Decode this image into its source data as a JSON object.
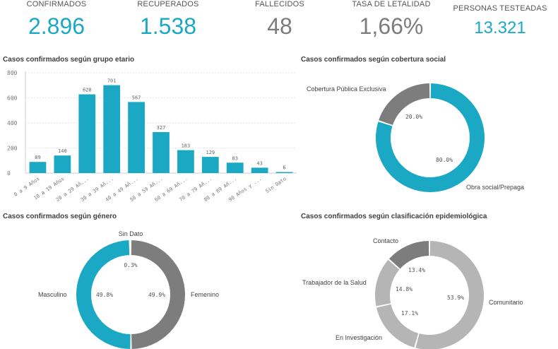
{
  "kpis": [
    {
      "label": "CONFIRMADOS",
      "value": "2.896"
    },
    {
      "label": "RECUPERADOS",
      "value": "1.538"
    },
    {
      "label": "FALLECIDOS",
      "value": "48"
    },
    {
      "label": "TASA DE LETALIDAD",
      "value": "1,66%"
    },
    {
      "label": "PERSONAS TESTEADAS",
      "value": "13.321"
    }
  ],
  "colors": {
    "teal": "#1aa8c4",
    "dark_gray": "#7d7d7d",
    "light_gray": "#b5b5b5",
    "mid_gray": "#999999"
  },
  "chart_data": [
    {
      "type": "bar",
      "title": "Casos confirmados según grupo etario",
      "categories": [
        "0 a 9 Años",
        "10 a 19 Años",
        "20 a 29 Añ...",
        "30 a 39 Añ...",
        "40 a 49 Añ...",
        "50 a 59 Añ...",
        "60 a 69 Añ...",
        "70 a 79 Añ...",
        "80 a 89 Añ...",
        "90 Años y ...",
        "Sin Dato"
      ],
      "values": [
        89,
        140,
        628,
        701,
        567,
        327,
        183,
        129,
        83,
        43,
        6
      ],
      "ylim": [
        0,
        800
      ],
      "yticks": [
        0,
        200,
        400,
        600,
        800
      ],
      "grid": true
    },
    {
      "type": "pie",
      "title": "Casos confirmados según cobertura social",
      "slices": [
        {
          "label": "Obra social/Prepaga",
          "value": 80.0,
          "pct_label": "80.0%"
        },
        {
          "label": "Cobertura Pública Exclusiva",
          "value": 20.0,
          "pct_label": "20.0%"
        }
      ]
    },
    {
      "type": "pie",
      "title": "Casos confirmados según género",
      "slices": [
        {
          "label": "Femenino",
          "value": 49.9,
          "pct_label": "49.9%"
        },
        {
          "label": "Masculino",
          "value": 49.8,
          "pct_label": "49.8%"
        },
        {
          "label": "Sin Dato",
          "value": 0.3,
          "pct_label": "0.3%"
        }
      ]
    },
    {
      "type": "pie",
      "title": "Casos confirmados según clasificación epidemiológica",
      "slices": [
        {
          "label": "Comunitario",
          "value": 53.9,
          "pct_label": "53.9%"
        },
        {
          "label": "En Investigación",
          "value": 17.1,
          "pct_label": "17.1%"
        },
        {
          "label": "Trabajador de la Salud",
          "value": 14.8,
          "pct_label": "14.8%"
        },
        {
          "label": "Contacto",
          "value": 13.4,
          "pct_label": "13.4%"
        }
      ]
    }
  ]
}
